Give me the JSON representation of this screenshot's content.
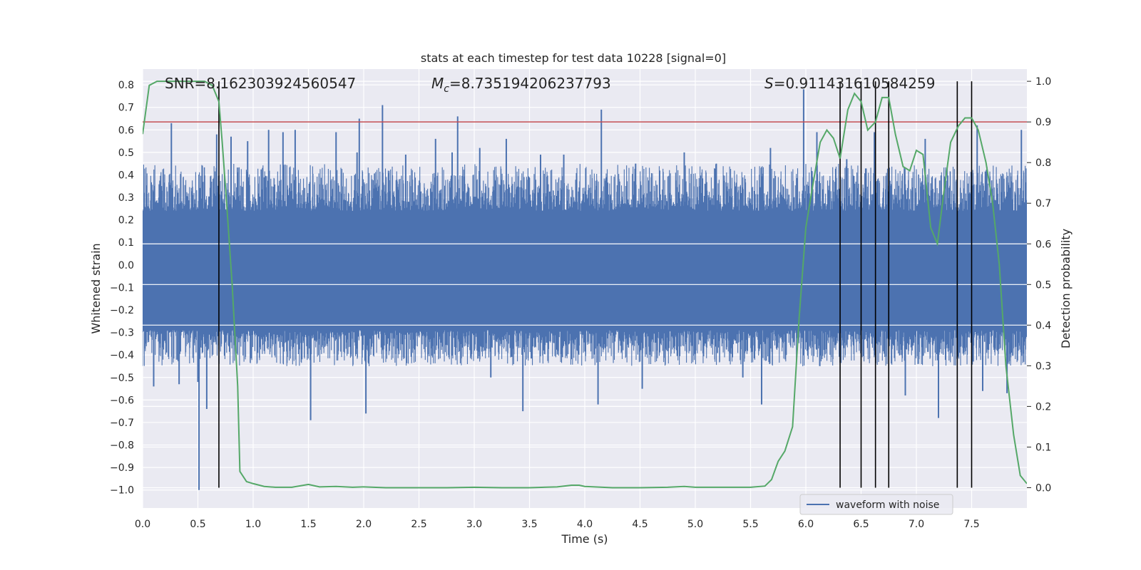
{
  "chart_data": {
    "type": "line",
    "title": "stats at each timestep for test data 10228 [signal=0]",
    "xlabel": "Time (s)",
    "ylabel_left": "Whitened strain",
    "ylabel_right": "Detection probability",
    "xlim": [
      0,
      8
    ],
    "ylim_left": [
      -1.08,
      0.87
    ],
    "ylim_right": [
      -0.05,
      1.03
    ],
    "x_ticks": [
      0.0,
      0.5,
      1.0,
      1.5,
      2.0,
      2.5,
      3.0,
      3.5,
      4.0,
      4.5,
      5.0,
      5.5,
      6.0,
      6.5,
      7.0,
      7.5
    ],
    "x_tick_labels": [
      "0.0",
      "0.5",
      "1.0",
      "1.5",
      "2.0",
      "2.5",
      "3.0",
      "3.5",
      "4.0",
      "4.5",
      "5.0",
      "5.5",
      "6.0",
      "6.5",
      "7.0",
      "7.5"
    ],
    "y_left_ticks": [
      0.8,
      0.7,
      0.6,
      0.5,
      0.4,
      0.3,
      0.2,
      0.1,
      0.0,
      -0.1,
      -0.2,
      -0.3,
      -0.4,
      -0.5,
      -0.6,
      -0.7,
      -0.8,
      -0.9,
      -1.0
    ],
    "y_left_tick_labels": [
      "0.8",
      "0.7",
      "0.6",
      "0.5",
      "0.4",
      "0.3",
      "0.2",
      "0.1",
      "0.0",
      "−0.1",
      "−0.2",
      "−0.3",
      "−0.4",
      "−0.5",
      "−0.6",
      "−0.7",
      "−0.8",
      "−0.9",
      "−1.0"
    ],
    "y_right_ticks": [
      1.0,
      0.9,
      0.8,
      0.7,
      0.6,
      0.5,
      0.4,
      0.3,
      0.2,
      0.1,
      0.0
    ],
    "y_right_tick_labels": [
      "1.0",
      "0.9",
      "0.8",
      "0.7",
      "0.6",
      "0.5",
      "0.4",
      "0.3",
      "0.2",
      "0.1",
      "0.0"
    ],
    "annotations": {
      "snr": "SNR=8.162303924560547",
      "mc_symbol": "M",
      "mc_subscript": "c",
      "mc_value": "=8.735194206237793",
      "s_symbol": "S",
      "s_value": "=0.911431610584259"
    },
    "threshold": {
      "value": 0.9,
      "axis": "right",
      "color": "#c44e52"
    },
    "vertical_markers": [
      0.69,
      6.31,
      6.5,
      6.63,
      6.75,
      7.37,
      7.5
    ],
    "legend": {
      "label": "waveform with noise",
      "position": "lower-right"
    },
    "waveform": {
      "name": "waveform with noise",
      "color": "#4c72b0",
      "x_range": [
        0,
        8
      ],
      "core_band": [
        -0.29,
        0.24
      ],
      "outer_band": [
        -0.45,
        0.45
      ],
      "spikes": [
        [
          0.26,
          0.63
        ],
        [
          0.33,
          -0.53
        ],
        [
          0.1,
          -0.54
        ],
        [
          0.5,
          -0.52
        ],
        [
          0.51,
          -1.0
        ],
        [
          0.58,
          -0.64
        ],
        [
          0.67,
          0.58
        ],
        [
          0.8,
          0.57
        ],
        [
          0.95,
          0.55
        ],
        [
          1.14,
          0.6
        ],
        [
          1.27,
          0.59
        ],
        [
          1.38,
          0.6
        ],
        [
          1.52,
          -0.69
        ],
        [
          1.75,
          0.59
        ],
        [
          1.94,
          0.5
        ],
        [
          1.96,
          0.65
        ],
        [
          2.02,
          -0.66
        ],
        [
          2.17,
          0.71
        ],
        [
          2.38,
          0.49
        ],
        [
          2.65,
          0.56
        ],
        [
          2.8,
          0.5
        ],
        [
          2.85,
          0.66
        ],
        [
          3.05,
          0.52
        ],
        [
          3.15,
          -0.5
        ],
        [
          3.29,
          0.56
        ],
        [
          3.44,
          -0.65
        ],
        [
          3.6,
          0.49
        ],
        [
          3.81,
          0.49
        ],
        [
          4.12,
          -0.62
        ],
        [
          4.15,
          0.69
        ],
        [
          4.46,
          0.45
        ],
        [
          4.52,
          -0.55
        ],
        [
          4.9,
          0.5
        ],
        [
          5.19,
          0.45
        ],
        [
          5.43,
          -0.5
        ],
        [
          5.6,
          -0.62
        ],
        [
          5.68,
          0.52
        ],
        [
          5.98,
          0.78
        ],
        [
          6.1,
          0.59
        ],
        [
          6.37,
          0.47
        ],
        [
          6.62,
          0.59
        ],
        [
          6.9,
          -0.58
        ],
        [
          7.08,
          0.56
        ],
        [
          7.2,
          -0.68
        ],
        [
          7.55,
          0.62
        ],
        [
          7.6,
          -0.56
        ],
        [
          7.82,
          -0.57
        ],
        [
          7.95,
          0.6
        ]
      ]
    },
    "series": [
      {
        "name": "Detection probability",
        "axis": "right",
        "color": "#55a868",
        "points": [
          [
            0.0,
            0.87
          ],
          [
            0.06,
            0.99
          ],
          [
            0.13,
            1.0
          ],
          [
            0.25,
            1.0
          ],
          [
            0.38,
            1.0
          ],
          [
            0.5,
            1.0
          ],
          [
            0.56,
            1.0
          ],
          [
            0.63,
            0.99
          ],
          [
            0.69,
            0.95
          ],
          [
            0.72,
            0.85
          ],
          [
            0.76,
            0.7
          ],
          [
            0.81,
            0.5
          ],
          [
            0.86,
            0.25
          ],
          [
            0.88,
            0.04
          ],
          [
            0.94,
            0.015
          ],
          [
            1.0,
            0.01
          ],
          [
            1.1,
            0.003
          ],
          [
            1.2,
            0.001
          ],
          [
            1.35,
            0.001
          ],
          [
            1.5,
            0.008
          ],
          [
            1.6,
            0.002
          ],
          [
            1.75,
            0.003
          ],
          [
            1.9,
            0.001
          ],
          [
            2.0,
            0.002
          ],
          [
            2.2,
            0.0
          ],
          [
            2.5,
            0.0
          ],
          [
            2.75,
            0.0
          ],
          [
            3.0,
            0.001
          ],
          [
            3.25,
            0.0
          ],
          [
            3.5,
            0.0
          ],
          [
            3.75,
            0.002
          ],
          [
            3.88,
            0.006
          ],
          [
            3.95,
            0.006
          ],
          [
            4.0,
            0.003
          ],
          [
            4.25,
            0.0
          ],
          [
            4.5,
            0.0
          ],
          [
            4.75,
            0.001
          ],
          [
            4.9,
            0.003
          ],
          [
            5.0,
            0.001
          ],
          [
            5.25,
            0.001
          ],
          [
            5.5,
            0.001
          ],
          [
            5.63,
            0.004
          ],
          [
            5.69,
            0.02
          ],
          [
            5.75,
            0.065
          ],
          [
            5.81,
            0.09
          ],
          [
            5.88,
            0.15
          ],
          [
            5.94,
            0.42
          ],
          [
            6.0,
            0.64
          ],
          [
            6.06,
            0.74
          ],
          [
            6.13,
            0.85
          ],
          [
            6.19,
            0.88
          ],
          [
            6.25,
            0.86
          ],
          [
            6.31,
            0.81
          ],
          [
            6.38,
            0.93
          ],
          [
            6.44,
            0.97
          ],
          [
            6.5,
            0.95
          ],
          [
            6.56,
            0.88
          ],
          [
            6.63,
            0.9
          ],
          [
            6.69,
            0.96
          ],
          [
            6.75,
            0.96
          ],
          [
            6.81,
            0.87
          ],
          [
            6.88,
            0.79
          ],
          [
            6.94,
            0.78
          ],
          [
            7.0,
            0.83
          ],
          [
            7.06,
            0.82
          ],
          [
            7.13,
            0.64
          ],
          [
            7.19,
            0.6
          ],
          [
            7.25,
            0.73
          ],
          [
            7.31,
            0.85
          ],
          [
            7.38,
            0.89
          ],
          [
            7.44,
            0.91
          ],
          [
            7.5,
            0.91
          ],
          [
            7.56,
            0.88
          ],
          [
            7.63,
            0.8
          ],
          [
            7.69,
            0.7
          ],
          [
            7.75,
            0.55
          ],
          [
            7.81,
            0.3
          ],
          [
            7.88,
            0.13
          ],
          [
            7.94,
            0.03
          ],
          [
            8.0,
            0.01
          ]
        ]
      }
    ]
  }
}
